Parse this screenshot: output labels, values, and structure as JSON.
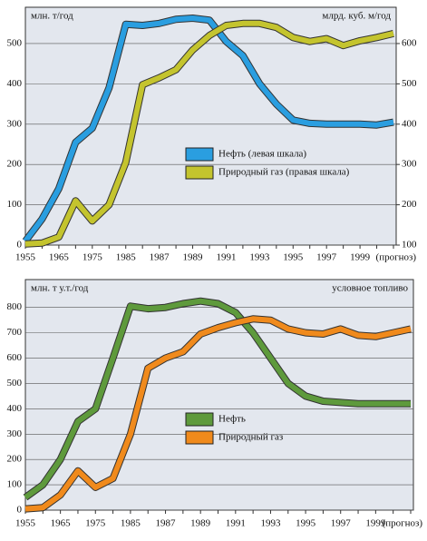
{
  "chart_data": [
    {
      "type": "line",
      "y_label": "млн. т/год",
      "y2_label": "млрд. куб. м/год",
      "categories": [
        "1955",
        null,
        "1965",
        null,
        "1975",
        null,
        "1985",
        null,
        "1987",
        null,
        "1989",
        null,
        "1991",
        null,
        "1993",
        null,
        "1995",
        null,
        "1997",
        null,
        "1999",
        null,
        "(прогноз)"
      ],
      "series": [
        {
          "name": "Нефть (левая шкала)",
          "color": "#2a9ee0",
          "values": [
            10,
            65,
            140,
            255,
            290,
            390,
            548,
            545,
            550,
            560,
            563,
            558,
            505,
            470,
            400,
            350,
            310,
            302,
            300,
            300,
            300,
            298,
            305
          ]
        },
        {
          "name": "Природный газ (правая шкала)",
          "color": "#c4c42e",
          "axis": "y2",
          "values": [
            103,
            105,
            120,
            210,
            160,
            200,
            305,
            498,
            515,
            535,
            584,
            620,
            645,
            650,
            650,
            640,
            615,
            605,
            612,
            595,
            607,
            615,
            625
          ]
        }
      ],
      "ylim": [
        0,
        590
      ],
      "yticks": [
        0,
        100,
        200,
        300,
        400,
        500
      ],
      "y2lim": [
        100,
        690
      ],
      "y2ticks": [
        100,
        200,
        300,
        400,
        500,
        600
      ],
      "grid": true
    },
    {
      "type": "line",
      "y_label": "млн. т у.т./год",
      "annotation": "условное топливо",
      "categories": [
        "1955",
        null,
        "1965",
        null,
        "1975",
        null,
        "1985",
        null,
        "1987",
        null,
        "1989",
        null,
        "1991",
        null,
        "1993",
        null,
        "1995",
        null,
        "1997",
        null,
        "1999",
        null,
        "(прогноз)"
      ],
      "series": [
        {
          "name": "Нефть",
          "color": "#5e9a3c",
          "values": [
            50,
            100,
            200,
            350,
            400,
            600,
            805,
            795,
            800,
            815,
            825,
            815,
            780,
            700,
            600,
            500,
            450,
            430,
            425,
            420,
            420,
            420,
            420
          ]
        },
        {
          "name": "Природный газ",
          "color": "#f08a1c",
          "values": [
            5,
            10,
            60,
            155,
            90,
            125,
            300,
            560,
            600,
            625,
            695,
            720,
            740,
            755,
            750,
            715,
            700,
            695,
            715,
            690,
            685,
            700,
            715
          ]
        }
      ],
      "ylim": [
        0,
        910
      ],
      "yticks": [
        0,
        100,
        200,
        300,
        400,
        500,
        600,
        700,
        800
      ],
      "grid": true
    }
  ]
}
